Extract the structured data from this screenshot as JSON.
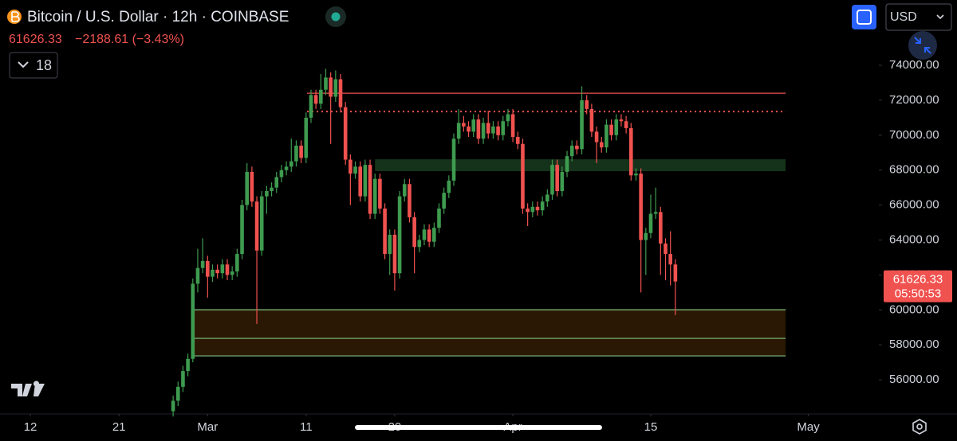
{
  "header": {
    "title": "Bitcoin / U.S. Dollar · 12h · COINBASE",
    "change": "−2188.61 (−3.43%)",
    "indicator": "18",
    "currency": "USD"
  },
  "chart_data": {
    "type": "candlestick",
    "up_color": "#3e9b4f",
    "down_color": "#f0524f",
    "x": [
      14.5,
      15,
      15.5,
      16,
      16.5,
      17,
      17.5,
      18,
      18.5,
      19,
      19.5,
      20,
      20.5,
      21,
      21.5,
      22,
      22.5,
      23,
      23.5,
      24,
      24.5,
      25,
      25.5,
      26,
      26.5,
      27,
      27.5,
      28,
      28.5,
      29,
      29.5,
      30,
      30.5,
      31,
      31.5,
      32,
      32.5,
      33,
      33.5,
      34,
      34.5,
      35,
      35.5,
      36,
      36.5,
      37,
      37.5,
      38,
      38.5,
      39,
      39.5,
      40,
      40.5,
      41,
      41.5,
      42,
      42.5,
      43,
      43.5,
      44,
      44.5,
      45,
      45.5,
      46,
      46.5,
      47,
      47.5,
      48,
      48.5,
      49,
      49.5,
      50,
      50.5,
      51,
      51.5,
      52,
      52.5,
      53,
      53.5,
      54,
      54.5,
      55,
      55.5,
      56,
      56.5,
      57,
      57.5,
      58,
      58.5,
      59,
      59.5,
      60,
      60.5,
      61,
      61.5,
      62,
      62.5,
      63,
      63.5,
      64,
      64.5,
      65,
      65.5
    ],
    "open": [
      54200,
      54800,
      55600,
      56500,
      57200,
      61500,
      62400,
      62800,
      61900,
      62300,
      62100,
      62600,
      62000,
      62200,
      63200,
      66000,
      67900,
      66200,
      63400,
      66500,
      66800,
      67000,
      67600,
      68000,
      68200,
      68500,
      69400,
      68700,
      71000,
      72300,
      71800,
      72600,
      73300,
      72200,
      73200,
      71600,
      68600,
      67800,
      68200,
      66500,
      68300,
      65500,
      67500,
      65800,
      63200,
      64300,
      62100,
      66500,
      67200,
      65300,
      63600,
      64000,
      64600,
      63900,
      64700,
      65800,
      66700,
      67400,
      69800,
      70700,
      70500,
      70200,
      70900,
      69800,
      70700,
      70100,
      70500,
      70000,
      70800,
      71200,
      69900,
      69500,
      65800,
      65600,
      65900,
      65700,
      66200,
      66600,
      68300,
      66800,
      67900,
      68800,
      69400,
      69200,
      72000,
      71500,
      70200,
      69600,
      69300,
      70600,
      70000,
      70900,
      70800,
      70400,
      67700,
      67800,
      64000,
      64400,
      65500,
      65600,
      63800,
      63200,
      62600
    ],
    "high": [
      55100,
      55900,
      56800,
      57500,
      61800,
      63500,
      64100,
      63100,
      62600,
      62600,
      62900,
      62900,
      62500,
      63500,
      66300,
      68400,
      68200,
      66500,
      66800,
      67100,
      67300,
      67900,
      68300,
      68500,
      69800,
      69700,
      69700,
      71300,
      72600,
      72600,
      73500,
      73800,
      73600,
      73700,
      73500,
      71900,
      68900,
      68500,
      68500,
      68600,
      68600,
      67800,
      67800,
      66100,
      64600,
      64600,
      66800,
      67500,
      67500,
      65600,
      64300,
      64900,
      64900,
      65000,
      66100,
      67000,
      67700,
      70100,
      71500,
      71100,
      70800,
      71200,
      71200,
      71000,
      71400,
      70800,
      70800,
      71100,
      71500,
      71500,
      70200,
      69800,
      66100,
      66200,
      66200,
      66500,
      66900,
      68600,
      68600,
      68200,
      69100,
      69700,
      69700,
      72800,
      72300,
      71800,
      70500,
      69900,
      70900,
      70900,
      71200,
      71200,
      71100,
      70700,
      68100,
      68100,
      64700,
      66600,
      67000,
      65900,
      64100,
      64500,
      62900
    ],
    "low": [
      53900,
      54500,
      55300,
      56200,
      57000,
      61000,
      62100,
      60700,
      61600,
      61800,
      61800,
      61700,
      61700,
      61900,
      62900,
      65700,
      65900,
      59200,
      63100,
      65500,
      66500,
      66700,
      67300,
      67700,
      67900,
      68200,
      68400,
      68400,
      70700,
      71500,
      71500,
      72300,
      69500,
      71900,
      71300,
      68300,
      66000,
      67500,
      66200,
      66200,
      65200,
      65200,
      65500,
      62900,
      62000,
      61100,
      61800,
      66200,
      65000,
      62100,
      63300,
      63700,
      63600,
      63600,
      64400,
      65500,
      66400,
      67100,
      69500,
      70200,
      69900,
      69900,
      69500,
      69500,
      69800,
      69800,
      69700,
      69700,
      70500,
      69600,
      69200,
      65500,
      64800,
      65300,
      65400,
      65400,
      65900,
      66300,
      66500,
      66500,
      67600,
      68500,
      68900,
      68900,
      71200,
      69900,
      68400,
      69000,
      69000,
      69700,
      69700,
      70500,
      70100,
      67400,
      67400,
      61000,
      62000,
      64100,
      65200,
      62000,
      61700,
      61400,
      59700
    ],
    "close": [
      54800,
      55600,
      56500,
      57200,
      61500,
      62400,
      62800,
      61900,
      62300,
      62100,
      62600,
      62000,
      62200,
      63200,
      66000,
      67900,
      66200,
      63400,
      66500,
      66800,
      67000,
      67600,
      68000,
      68200,
      68500,
      69400,
      68700,
      71000,
      72300,
      71800,
      72600,
      73300,
      72200,
      73200,
      71600,
      68600,
      67800,
      68200,
      66500,
      68300,
      65500,
      67500,
      65800,
      63200,
      64300,
      62100,
      66500,
      67200,
      65300,
      63600,
      64000,
      64600,
      63900,
      64700,
      65800,
      66700,
      67400,
      69800,
      70700,
      70500,
      70200,
      70900,
      69800,
      70700,
      70100,
      70500,
      70000,
      70800,
      71200,
      69900,
      69500,
      65800,
      65600,
      65900,
      65700,
      66200,
      66600,
      68300,
      66800,
      67900,
      68800,
      69400,
      69200,
      72000,
      71500,
      70200,
      69600,
      69300,
      70600,
      70000,
      70900,
      70800,
      70400,
      67700,
      67800,
      64000,
      64400,
      65500,
      65600,
      63800,
      63200,
      62600,
      61626.33
    ],
    "xlim": [
      -3.08,
      86
    ],
    "ylim": [
      54046,
      77736
    ],
    "xticks": [
      {
        "value": 0,
        "label": "12"
      },
      {
        "value": 9,
        "label": "21"
      },
      {
        "value": 18,
        "label": "Mar"
      },
      {
        "value": 28,
        "label": "11"
      },
      {
        "value": 37,
        "label": "20"
      },
      {
        "value": 49,
        "label": "Apr"
      },
      {
        "value": 63,
        "label": "15"
      },
      {
        "value": 79,
        "label": "May"
      }
    ],
    "yticks": [
      {
        "value": 56000,
        "label": "56000.00"
      },
      {
        "value": 58000,
        "label": "58000.00"
      },
      {
        "value": 60000,
        "label": "60000.00"
      },
      {
        "value": 62000,
        "label": "62000.00"
      },
      {
        "value": 64000,
        "label": "64000.00"
      },
      {
        "value": 66000,
        "label": "66000.00"
      },
      {
        "value": 68000,
        "label": "68000.00"
      },
      {
        "value": 70000,
        "label": "70000.00"
      },
      {
        "value": 72000,
        "label": "72000.00"
      },
      {
        "value": 74000,
        "label": "74000.00"
      }
    ],
    "countdown": "05:50:53",
    "zones": [
      {
        "y": [
          67940,
          68620
        ],
        "x": [
          35,
          76.7
        ],
        "color": "#14331a"
      },
      {
        "y": [
          57370,
          60010
        ],
        "x": [
          16.4,
          76.7
        ],
        "color": "#2a1804"
      }
    ],
    "levels": [
      {
        "y": 72400,
        "x": [
          28.1,
          76.7
        ],
        "color": "#f0524f",
        "dashed": false
      },
      {
        "y": 71350,
        "x": [
          28.1,
          76.7
        ],
        "color": "#f0524f",
        "dashed": true
      },
      {
        "y": 60010,
        "x": [
          16.4,
          76.7
        ],
        "color": "#7fc47f",
        "dashed": false
      },
      {
        "y": 58370,
        "x": [
          16.4,
          76.7
        ],
        "color": "#7fc47f",
        "dashed": false
      },
      {
        "y": 57370,
        "x": [
          16.4,
          76.7
        ],
        "color": "#7fc47f",
        "dashed": false
      }
    ]
  }
}
